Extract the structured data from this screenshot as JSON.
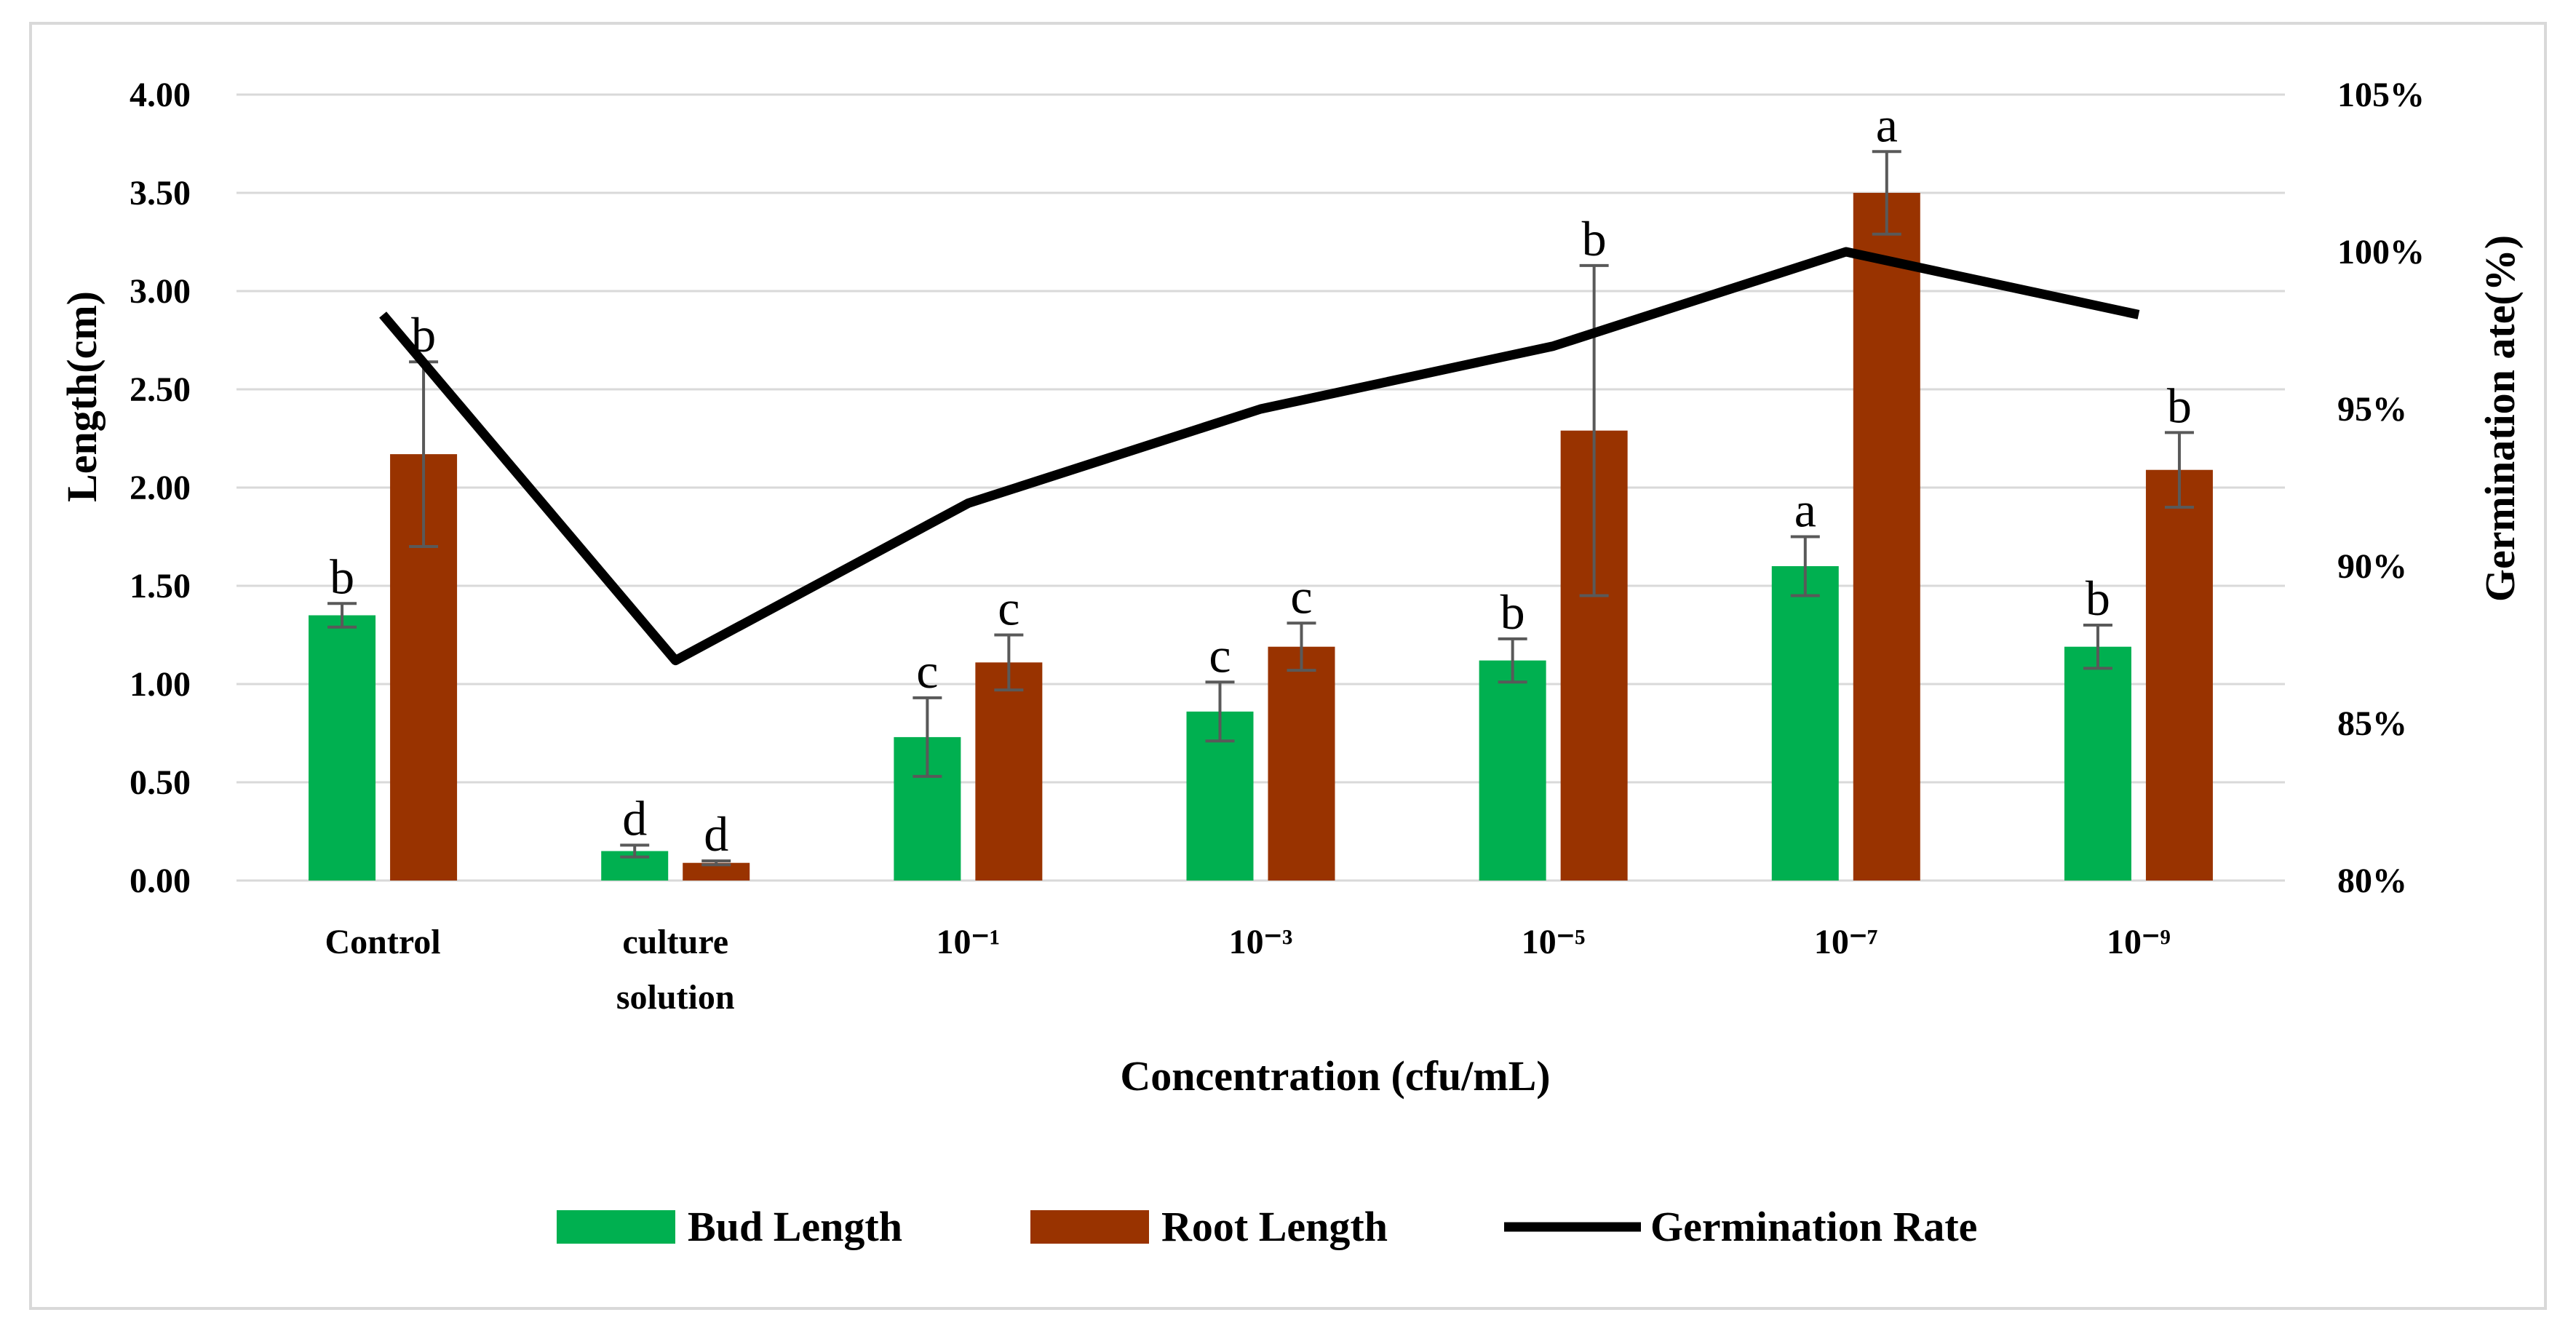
{
  "chart_data": {
    "type": "bar+line",
    "title": "",
    "xlabel": "Concentration (cfu/mL)",
    "ylabel": "Length(cm)",
    "y2label": "Germination ate(%)",
    "ylim": [
      0,
      4.0
    ],
    "y2lim": [
      80,
      105
    ],
    "yticks": [
      "0.00",
      "0.50",
      "1.00",
      "1.50",
      "2.00",
      "2.50",
      "3.00",
      "3.50",
      "4.00"
    ],
    "y2ticks": [
      "80%",
      "85%",
      "90%",
      "95%",
      "100%",
      "105%"
    ],
    "gridlines": true,
    "legend_position": "bottom",
    "categories": [
      {
        "label": [
          "Control"
        ]
      },
      {
        "label": [
          "culture",
          "solution"
        ]
      },
      {
        "label": [
          "10⁻¹"
        ]
      },
      {
        "label": [
          "10⁻³"
        ]
      },
      {
        "label": [
          "10⁻⁵"
        ]
      },
      {
        "label": [
          "10⁻⁷"
        ]
      },
      {
        "label": [
          "10⁻⁹"
        ]
      }
    ],
    "series": [
      {
        "name": "Bud Length",
        "type": "bar",
        "axis": "left",
        "color": "#00b050",
        "values": [
          1.35,
          0.15,
          0.73,
          0.86,
          1.12,
          1.6,
          1.19
        ],
        "errors": [
          0.06,
          0.03,
          0.2,
          0.15,
          0.11,
          0.15,
          0.11
        ],
        "letters": [
          "b",
          "d",
          "c",
          "c",
          "b",
          "a",
          "b"
        ]
      },
      {
        "name": "Root Length",
        "type": "bar",
        "axis": "left",
        "color": "#993300",
        "values": [
          2.17,
          0.09,
          1.11,
          1.19,
          2.29,
          3.5,
          2.09
        ],
        "errors": [
          0.47,
          0.01,
          0.14,
          0.12,
          0.84,
          0.21,
          0.19
        ],
        "letters": [
          "b",
          "d",
          "c",
          "c",
          "b",
          "a",
          "b"
        ]
      },
      {
        "name": "Germination Rate",
        "type": "line",
        "axis": "right",
        "color": "#000000",
        "values": [
          98,
          87,
          92,
          95,
          97,
          100,
          98
        ]
      }
    ]
  }
}
